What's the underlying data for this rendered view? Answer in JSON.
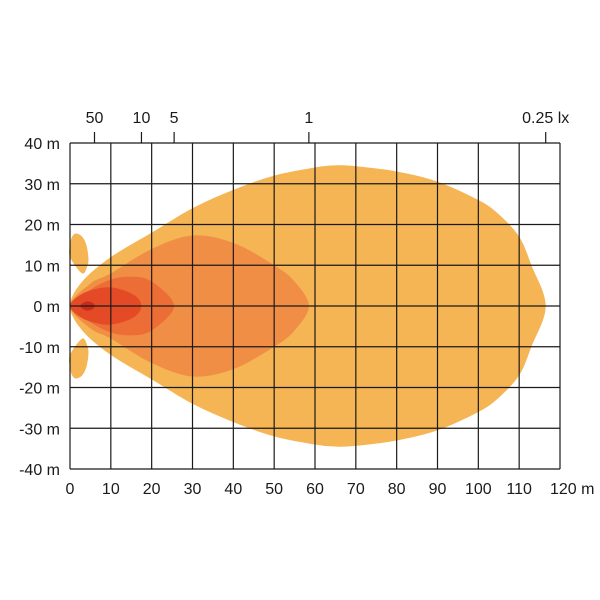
{
  "chart_data": {
    "type": "heatmap",
    "title": "",
    "xlabel": "",
    "ylabel": "",
    "xlim": [
      0,
      120
    ],
    "ylim": [
      -40,
      40
    ],
    "x_ticks": [
      0,
      10,
      20,
      30,
      40,
      50,
      60,
      70,
      80,
      90,
      100,
      110,
      120
    ],
    "y_ticks": [
      40,
      30,
      20,
      10,
      0,
      -10,
      -20,
      -30,
      -40
    ],
    "x_tick_labels": [
      "0",
      "10",
      "20",
      "30",
      "40",
      "50",
      "60",
      "70",
      "80",
      "90",
      "100",
      "110",
      "120 m"
    ],
    "y_tick_labels": [
      "40 m",
      "30 m",
      "20 m",
      "10 m",
      "0 m",
      "-10 m",
      "-20 m",
      "-30 m",
      "-40 m"
    ],
    "grid": true,
    "lux_markers": [
      {
        "label": "50",
        "x": 6
      },
      {
        "label": "10",
        "x": 17.5
      },
      {
        "label": "5",
        "x": 25.5
      },
      {
        "label": "1",
        "x": 58.5
      },
      {
        "label": "0.25 lx",
        "x": 116.5
      }
    ],
    "series": [
      {
        "name": "0.25 lx",
        "color": "#f5b555",
        "x": [
          0,
          3,
          10,
          20,
          30,
          40,
          50,
          60,
          65,
          70,
          80,
          90,
          100,
          105,
          110,
          113,
          116.5,
          113,
          110,
          105,
          100,
          90,
          80,
          70,
          65,
          60,
          50,
          40,
          30,
          20,
          10,
          3,
          0
        ],
        "y": [
          0,
          6,
          12,
          18,
          24,
          28.5,
          32,
          34,
          34.5,
          34.3,
          33,
          30.5,
          26,
          22.5,
          17,
          10,
          0,
          -10,
          -17,
          -22.5,
          -26,
          -30.5,
          -33,
          -34.3,
          -34.5,
          -34,
          -32,
          -28.5,
          -24,
          -18,
          -12,
          -6,
          0
        ]
      },
      {
        "name": "1 lx",
        "color": "#f18e45",
        "x": [
          0,
          5,
          10,
          20,
          30,
          40,
          50,
          55,
          58.5,
          55,
          50,
          40,
          30,
          20,
          10,
          5,
          0
        ],
        "y": [
          0,
          5.5,
          8,
          14,
          17.3,
          15.5,
          10,
          6,
          0,
          -6,
          -10,
          -15.5,
          -17.3,
          -14,
          -8,
          -5.5,
          0
        ]
      },
      {
        "name": "5 lx",
        "color": "#ec6e36",
        "x": [
          0,
          5,
          10,
          15,
          20,
          25.5,
          20,
          15,
          10,
          5,
          0
        ],
        "y": [
          0,
          4,
          6.5,
          7.2,
          6,
          0,
          -6,
          -7.2,
          -6.5,
          -4,
          0
        ]
      },
      {
        "name": "10 lx",
        "color": "#e54a26",
        "x": [
          0,
          3,
          8,
          12,
          16,
          17.5,
          16,
          12,
          8,
          3,
          0
        ],
        "y": [
          0,
          3,
          4.5,
          4.2,
          2.5,
          0,
          -2.5,
          -4.2,
          -4.5,
          -3,
          0
        ]
      },
      {
        "name": "50 lx",
        "color": "#c62b1b",
        "x": [
          2.5,
          4,
          5.5,
          6,
          5.5,
          4,
          2.5
        ],
        "y": [
          0,
          1.1,
          0.8,
          0,
          -0.8,
          -1.1,
          0
        ]
      }
    ],
    "side_lobes": [
      {
        "color": "#f5b555",
        "x": [
          0,
          0,
          0.5,
          1.5,
          3,
          4,
          4.5,
          4.3,
          3
        ],
        "y": [
          12,
          15,
          17,
          17.8,
          17,
          15,
          12,
          10,
          8
        ]
      },
      {
        "color": "#f5b555",
        "x": [
          0,
          0,
          0.5,
          1.5,
          3,
          4,
          4.5,
          4.3,
          3
        ],
        "y": [
          -12,
          -15,
          -17,
          -17.8,
          -17,
          -15,
          -12,
          -10,
          -8
        ]
      }
    ]
  }
}
